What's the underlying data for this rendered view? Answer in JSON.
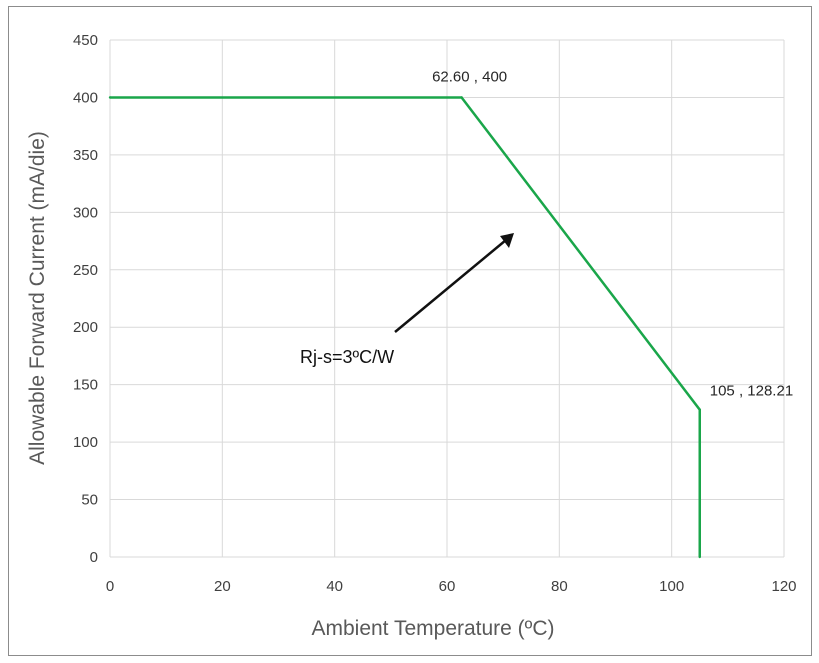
{
  "chart_data": {
    "type": "line",
    "title": "",
    "xlabel": "Ambient Temperature (ºC)",
    "ylabel": "Allowable Forward Current (mA/die)",
    "xlim": [
      0,
      120
    ],
    "ylim": [
      0,
      450
    ],
    "x_ticks": [
      "0",
      "20",
      "40",
      "60",
      "80",
      "100",
      "120"
    ],
    "y_ticks": [
      "0",
      "50",
      "100",
      "150",
      "200",
      "250",
      "300",
      "350",
      "400",
      "450"
    ],
    "grid": true,
    "legend": "none",
    "series": [
      {
        "color": "#1aa64a",
        "points": [
          [
            0,
            400
          ],
          [
            62.6,
            400
          ],
          [
            105,
            128.21
          ],
          [
            105,
            0
          ]
        ]
      }
    ],
    "point_labels": [
      {
        "text": "62.60 , 400",
        "x": 62.6,
        "y": 400
      },
      {
        "text": "105 , 128.21",
        "x": 105,
        "y": 128.21
      }
    ],
    "annotation": {
      "text": "Rj-s=3ºC/W"
    }
  }
}
